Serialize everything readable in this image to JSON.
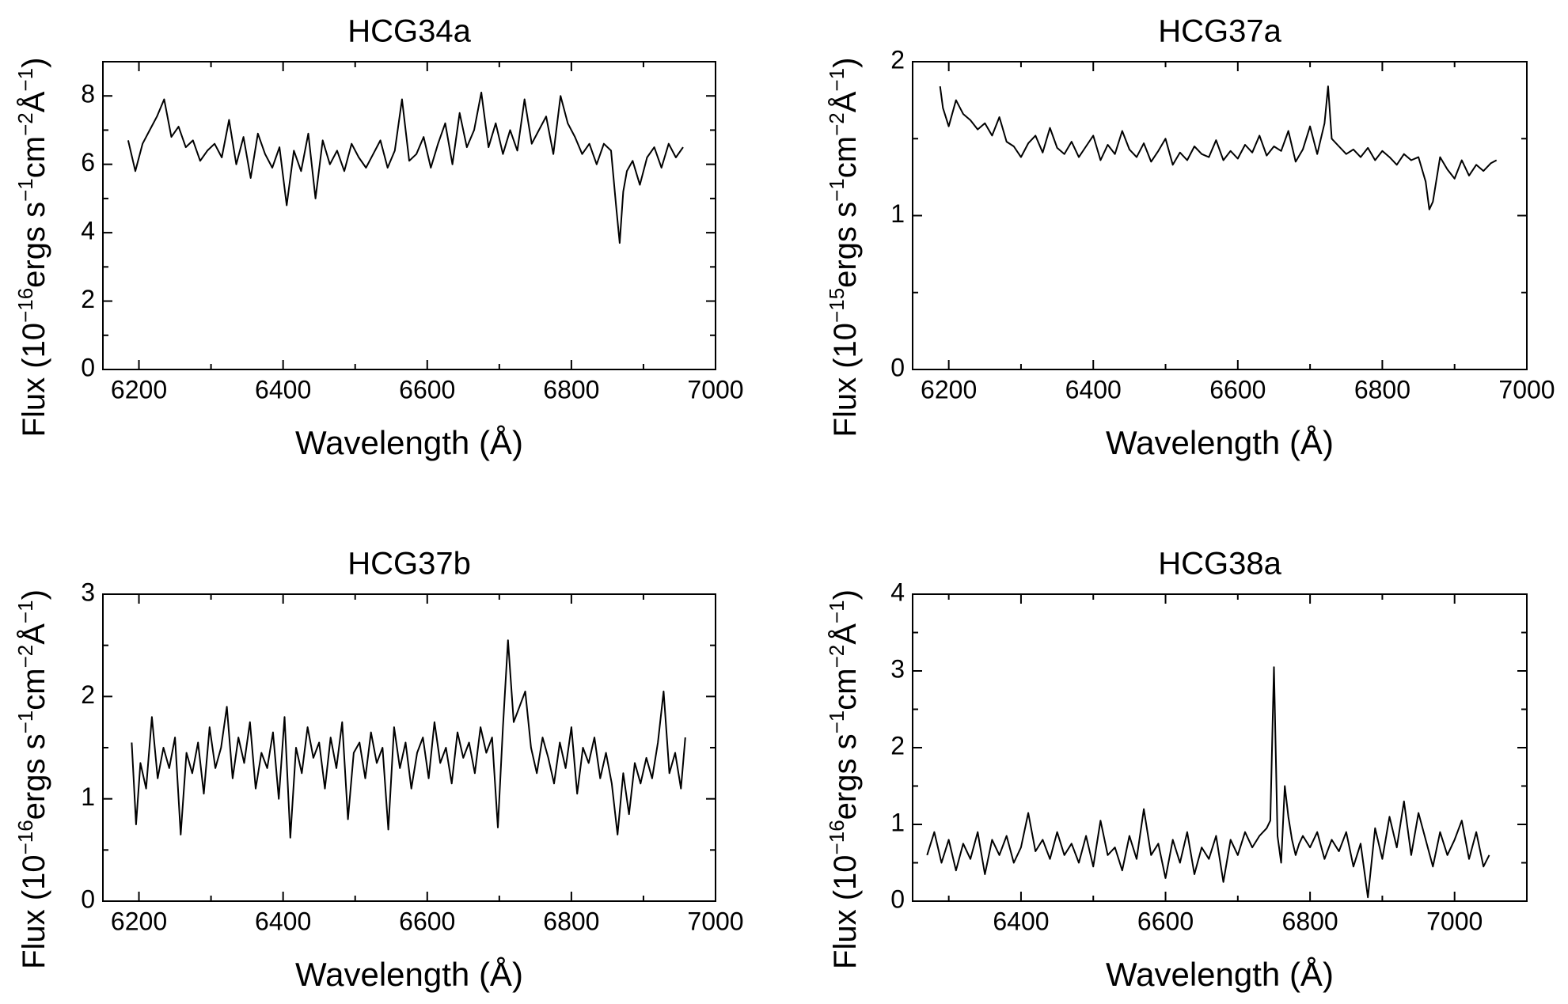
{
  "figure": {
    "panel_count": 4
  },
  "chart_data": [
    {
      "type": "line",
      "title": "HCG34a",
      "xlabel": "Wavelength (Å)",
      "ylabel_prefix": "Flux (10",
      "ylabel_exponent": "−16",
      "ylabel_units": "ergs s",
      "ylabel_text": "Flux (10⁻¹⁶ergs s⁻¹cm⁻²Å⁻¹)",
      "xlim": [
        6150,
        7000
      ],
      "ylim": [
        0,
        9
      ],
      "xticks": [
        6200,
        6400,
        6600,
        6800,
        7000
      ],
      "xtick_labels": [
        "6200",
        "6400",
        "6600",
        "6800",
        "7000"
      ],
      "yticks": [
        0,
        2,
        4,
        6,
        8
      ],
      "ytick_labels": [
        "0",
        "2",
        "4",
        "6",
        "8"
      ],
      "x": [
        6185,
        6195,
        6205,
        6215,
        6225,
        6235,
        6245,
        6255,
        6265,
        6275,
        6285,
        6295,
        6305,
        6315,
        6325,
        6335,
        6345,
        6355,
        6365,
        6375,
        6385,
        6395,
        6405,
        6415,
        6425,
        6435,
        6445,
        6455,
        6465,
        6475,
        6485,
        6495,
        6505,
        6515,
        6525,
        6535,
        6545,
        6555,
        6565,
        6575,
        6585,
        6595,
        6605,
        6615,
        6625,
        6635,
        6645,
        6655,
        6665,
        6675,
        6685,
        6695,
        6705,
        6715,
        6725,
        6735,
        6745,
        6755,
        6765,
        6775,
        6785,
        6795,
        6805,
        6815,
        6825,
        6835,
        6845,
        6855,
        6862,
        6867,
        6872,
        6877,
        6885,
        6895,
        6905,
        6915,
        6925,
        6935,
        6945,
        6955
      ],
      "values": [
        6.7,
        5.8,
        6.6,
        7.0,
        7.4,
        7.9,
        6.8,
        7.1,
        6.5,
        6.7,
        6.1,
        6.4,
        6.6,
        6.2,
        7.3,
        6.0,
        6.8,
        5.6,
        6.9,
        6.3,
        5.9,
        6.5,
        4.8,
        6.4,
        5.8,
        6.9,
        5.0,
        6.7,
        6.0,
        6.4,
        5.8,
        6.6,
        6.2,
        5.9,
        6.3,
        6.7,
        5.9,
        6.4,
        7.9,
        6.1,
        6.3,
        6.8,
        5.9,
        6.6,
        7.2,
        6.0,
        7.5,
        6.5,
        7.0,
        8.1,
        6.5,
        7.2,
        6.3,
        7.0,
        6.4,
        7.9,
        6.6,
        7.0,
        7.4,
        6.3,
        8.0,
        7.2,
        6.8,
        6.3,
        6.6,
        6.0,
        6.6,
        6.4,
        4.8,
        3.7,
        5.2,
        5.8,
        6.1,
        5.4,
        6.2,
        6.5,
        5.9,
        6.6,
        6.2,
        6.5
      ]
    },
    {
      "type": "line",
      "title": "HCG37a",
      "xlabel": "Wavelength (Å)",
      "ylabel_prefix": "Flux (10",
      "ylabel_exponent": "−15",
      "ylabel_units": "ergs s",
      "ylabel_text": "Flux (10⁻¹⁵ergs s⁻¹cm⁻²Å⁻¹)",
      "xlim": [
        6150,
        7000
      ],
      "ylim": [
        0,
        2
      ],
      "xticks": [
        6200,
        6400,
        6600,
        6800,
        7000
      ],
      "xtick_labels": [
        "6200",
        "6400",
        "6600",
        "6800",
        "7000"
      ],
      "yticks": [
        0,
        1,
        2
      ],
      "ytick_labels": [
        "0",
        "1",
        "2"
      ],
      "x": [
        6188,
        6192,
        6200,
        6210,
        6220,
        6230,
        6240,
        6250,
        6260,
        6270,
        6280,
        6290,
        6300,
        6310,
        6320,
        6330,
        6340,
        6350,
        6360,
        6370,
        6380,
        6390,
        6400,
        6410,
        6420,
        6430,
        6440,
        6450,
        6460,
        6470,
        6480,
        6490,
        6500,
        6510,
        6520,
        6530,
        6540,
        6550,
        6560,
        6570,
        6580,
        6590,
        6600,
        6610,
        6620,
        6630,
        6640,
        6650,
        6660,
        6670,
        6680,
        6690,
        6700,
        6710,
        6720,
        6725,
        6730,
        6740,
        6750,
        6760,
        6770,
        6780,
        6790,
        6800,
        6810,
        6820,
        6830,
        6840,
        6850,
        6860,
        6865,
        6870,
        6880,
        6890,
        6900,
        6910,
        6920,
        6930,
        6940,
        6950,
        6958
      ],
      "values": [
        1.84,
        1.7,
        1.58,
        1.75,
        1.66,
        1.62,
        1.56,
        1.6,
        1.52,
        1.64,
        1.48,
        1.45,
        1.38,
        1.47,
        1.52,
        1.41,
        1.57,
        1.44,
        1.4,
        1.48,
        1.38,
        1.45,
        1.52,
        1.36,
        1.46,
        1.4,
        1.55,
        1.43,
        1.38,
        1.47,
        1.35,
        1.42,
        1.5,
        1.33,
        1.41,
        1.36,
        1.45,
        1.4,
        1.38,
        1.49,
        1.36,
        1.42,
        1.37,
        1.46,
        1.41,
        1.52,
        1.39,
        1.45,
        1.42,
        1.55,
        1.35,
        1.43,
        1.58,
        1.4,
        1.6,
        1.84,
        1.5,
        1.45,
        1.4,
        1.43,
        1.38,
        1.44,
        1.36,
        1.42,
        1.38,
        1.33,
        1.4,
        1.36,
        1.38,
        1.22,
        1.04,
        1.09,
        1.38,
        1.3,
        1.24,
        1.36,
        1.26,
        1.33,
        1.29,
        1.34,
        1.36
      ]
    },
    {
      "type": "line",
      "title": "HCG37b",
      "xlabel": "Wavelength (Å)",
      "ylabel_prefix": "Flux (10",
      "ylabel_exponent": "−16",
      "ylabel_units": "ergs s",
      "ylabel_text": "Flux (10⁻¹⁶ergs s⁻¹cm⁻²Å⁻¹)",
      "xlim": [
        6150,
        7000
      ],
      "ylim": [
        0,
        3
      ],
      "xticks": [
        6200,
        6400,
        6600,
        6800,
        7000
      ],
      "xtick_labels": [
        "6200",
        "6400",
        "6600",
        "6800",
        "7000"
      ],
      "yticks": [
        0,
        1,
        2,
        3
      ],
      "ytick_labels": [
        "0",
        "1",
        "2",
        "3"
      ],
      "x": [
        6190,
        6196,
        6202,
        6210,
        6218,
        6226,
        6234,
        6242,
        6250,
        6258,
        6266,
        6274,
        6282,
        6290,
        6298,
        6306,
        6314,
        6322,
        6330,
        6338,
        6346,
        6354,
        6362,
        6370,
        6378,
        6386,
        6394,
        6402,
        6410,
        6418,
        6426,
        6434,
        6442,
        6450,
        6458,
        6466,
        6474,
        6482,
        6490,
        6498,
        6506,
        6514,
        6522,
        6530,
        6538,
        6546,
        6554,
        6562,
        6570,
        6578,
        6586,
        6594,
        6602,
        6610,
        6618,
        6626,
        6634,
        6642,
        6650,
        6658,
        6666,
        6674,
        6682,
        6690,
        6698,
        6705,
        6712,
        6720,
        6728,
        6736,
        6744,
        6752,
        6760,
        6768,
        6776,
        6784,
        6792,
        6800,
        6808,
        6816,
        6824,
        6832,
        6840,
        6848,
        6856,
        6864,
        6872,
        6880,
        6888,
        6896,
        6904,
        6912,
        6920,
        6928,
        6936,
        6944,
        6952,
        6958
      ],
      "values": [
        1.55,
        0.75,
        1.35,
        1.1,
        1.8,
        1.2,
        1.5,
        1.3,
        1.6,
        0.65,
        1.45,
        1.25,
        1.55,
        1.05,
        1.7,
        1.3,
        1.5,
        1.9,
        1.2,
        1.6,
        1.35,
        1.75,
        1.1,
        1.45,
        1.3,
        1.65,
        1.0,
        1.8,
        0.62,
        1.5,
        1.25,
        1.7,
        1.4,
        1.55,
        1.1,
        1.6,
        1.3,
        1.75,
        0.8,
        1.45,
        1.55,
        1.2,
        1.65,
        1.35,
        1.5,
        0.7,
        1.7,
        1.3,
        1.55,
        1.1,
        1.45,
        1.6,
        1.2,
        1.75,
        1.35,
        1.5,
        1.15,
        1.65,
        1.4,
        1.55,
        1.25,
        1.7,
        1.45,
        1.6,
        0.72,
        1.7,
        2.55,
        1.75,
        1.9,
        2.05,
        1.5,
        1.25,
        1.6,
        1.4,
        1.15,
        1.55,
        1.3,
        1.7,
        1.05,
        1.5,
        1.35,
        1.6,
        1.2,
        1.45,
        1.15,
        0.65,
        1.25,
        0.85,
        1.35,
        1.15,
        1.4,
        1.2,
        1.55,
        2.05,
        1.25,
        1.45,
        1.1,
        1.6
      ]
    },
    {
      "type": "line",
      "title": "HCG38a",
      "xlabel": "Wavelength (Å)",
      "ylabel_prefix": "Flux (10",
      "ylabel_exponent": "−16",
      "ylabel_units": "ergs s",
      "ylabel_text": "Flux (10⁻¹⁶ergs s⁻¹cm⁻²Å⁻¹)",
      "xlim": [
        6250,
        7100
      ],
      "ylim": [
        0,
        4
      ],
      "xticks": [
        6400,
        6600,
        6800,
        7000
      ],
      "xtick_labels": [
        "6400",
        "6600",
        "6800",
        "7000"
      ],
      "yticks": [
        0,
        1,
        2,
        3,
        4
      ],
      "ytick_labels": [
        "0",
        "1",
        "2",
        "3",
        "4"
      ],
      "x": [
        6270,
        6280,
        6290,
        6300,
        6310,
        6320,
        6330,
        6340,
        6350,
        6360,
        6370,
        6380,
        6390,
        6400,
        6410,
        6420,
        6430,
        6440,
        6450,
        6460,
        6470,
        6480,
        6490,
        6500,
        6510,
        6520,
        6530,
        6540,
        6550,
        6560,
        6570,
        6580,
        6590,
        6600,
        6610,
        6620,
        6630,
        6640,
        6650,
        6660,
        6670,
        6680,
        6690,
        6700,
        6710,
        6720,
        6730,
        6740,
        6745,
        6750,
        6755,
        6760,
        6765,
        6770,
        6775,
        6780,
        6785,
        6790,
        6800,
        6810,
        6820,
        6830,
        6840,
        6850,
        6860,
        6870,
        6880,
        6890,
        6900,
        6910,
        6920,
        6930,
        6940,
        6950,
        6960,
        6970,
        6980,
        6990,
        7000,
        7010,
        7020,
        7030,
        7040,
        7048
      ],
      "values": [
        0.6,
        0.9,
        0.5,
        0.8,
        0.4,
        0.75,
        0.55,
        0.9,
        0.35,
        0.8,
        0.6,
        0.85,
        0.5,
        0.7,
        1.15,
        0.65,
        0.8,
        0.55,
        0.9,
        0.6,
        0.75,
        0.5,
        0.85,
        0.45,
        1.05,
        0.6,
        0.7,
        0.4,
        0.85,
        0.55,
        1.2,
        0.6,
        0.75,
        0.3,
        0.8,
        0.5,
        0.9,
        0.35,
        0.7,
        0.55,
        0.85,
        0.25,
        0.8,
        0.6,
        0.9,
        0.7,
        0.85,
        0.95,
        1.05,
        3.05,
        0.85,
        0.5,
        1.5,
        1.1,
        0.8,
        0.6,
        0.75,
        0.85,
        0.7,
        0.9,
        0.55,
        0.8,
        0.65,
        0.9,
        0.45,
        0.75,
        0.05,
        0.95,
        0.55,
        1.1,
        0.7,
        1.3,
        0.6,
        1.15,
        0.8,
        0.45,
        0.9,
        0.6,
        0.8,
        1.05,
        0.55,
        0.9,
        0.45,
        0.6
      ]
    }
  ]
}
